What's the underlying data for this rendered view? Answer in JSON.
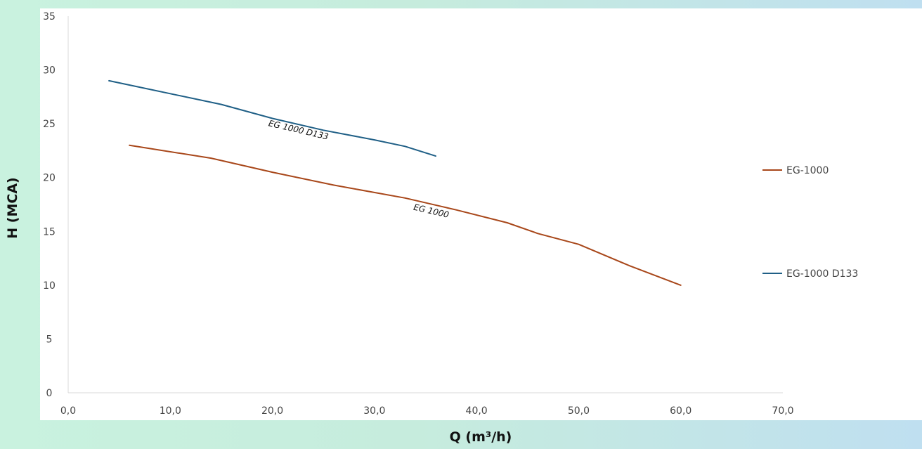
{
  "chart_data": {
    "type": "line",
    "xlabel": "Q (m³/h)",
    "ylabel": "H (MCA)",
    "xlim": [
      0,
      70
    ],
    "ylim": [
      0,
      35
    ],
    "x_ticks": [
      "0,0",
      "10,0",
      "20,0",
      "30,0",
      "40,0",
      "50,0",
      "60,0",
      "70,0"
    ],
    "y_ticks": [
      "0",
      "5",
      "10",
      "15",
      "20",
      "25",
      "30",
      "35"
    ],
    "grid": false,
    "legend_position": "right",
    "series": [
      {
        "name": "EG-1000",
        "color": "#a8471a",
        "annotation": "EG 1000",
        "x": [
          6,
          14,
          20,
          26,
          33,
          38,
          43,
          46,
          50,
          55,
          60
        ],
        "y": [
          23,
          21.8,
          20.5,
          19.3,
          18.1,
          17,
          15.8,
          14.8,
          13.8,
          11.8,
          10
        ]
      },
      {
        "name": "EG-1000 D133",
        "color": "#1f5f86",
        "annotation": "EG 1000 D133",
        "x": [
          4,
          10,
          15,
          20,
          25,
          30,
          33,
          36
        ],
        "y": [
          29,
          27.8,
          26.8,
          25.5,
          24.4,
          23.5,
          22.9,
          22
        ]
      }
    ]
  }
}
